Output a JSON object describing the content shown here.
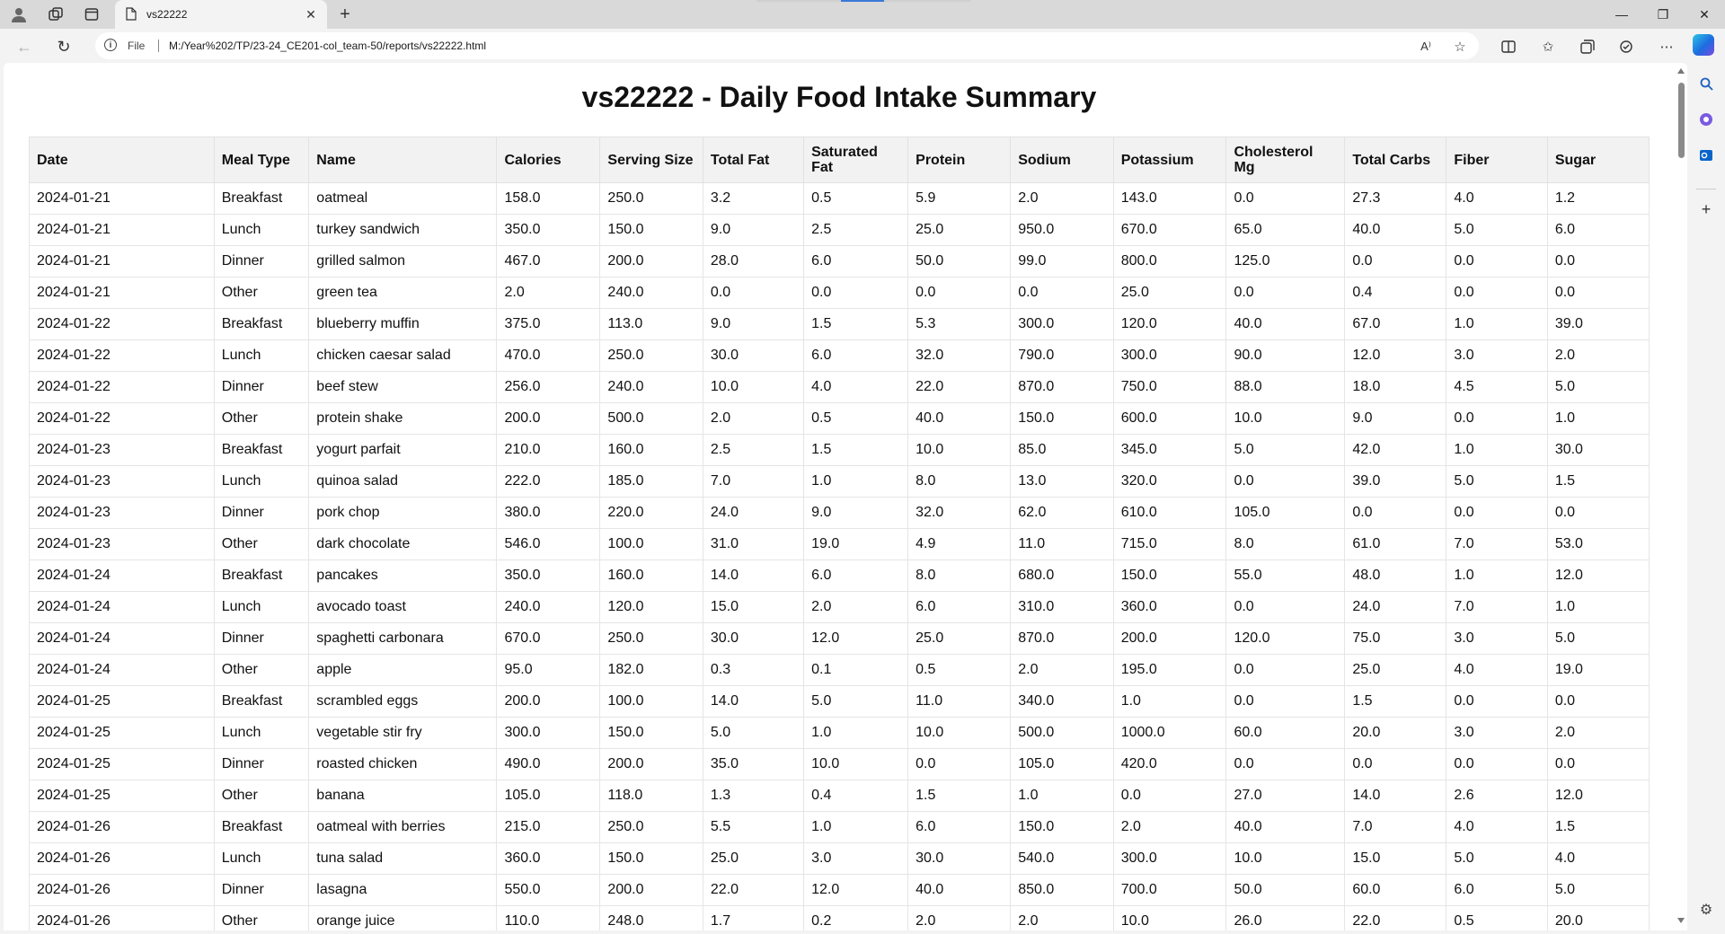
{
  "browser": {
    "tab_title": "vs22222",
    "address_prefix": "File",
    "url": "M:/Year%202/TP/23-24_CE201-col_team-50/reports/vs22222.html"
  },
  "page": {
    "title": "vs22222 - Daily Food Intake Summary"
  },
  "table": {
    "headers": [
      "Date",
      "Meal Type",
      "Name",
      "Calories",
      "Serving Size",
      "Total Fat",
      "Saturated Fat",
      "Protein",
      "Sodium",
      "Potassium",
      "Cholesterol Mg",
      "Total Carbs",
      "Fiber",
      "Sugar"
    ],
    "rows": [
      [
        "2024-01-21",
        "Breakfast",
        "oatmeal",
        "158.0",
        "250.0",
        "3.2",
        "0.5",
        "5.9",
        "2.0",
        "143.0",
        "0.0",
        "27.3",
        "4.0",
        "1.2"
      ],
      [
        "2024-01-21",
        "Lunch",
        "turkey sandwich",
        "350.0",
        "150.0",
        "9.0",
        "2.5",
        "25.0",
        "950.0",
        "670.0",
        "65.0",
        "40.0",
        "5.0",
        "6.0"
      ],
      [
        "2024-01-21",
        "Dinner",
        "grilled salmon",
        "467.0",
        "200.0",
        "28.0",
        "6.0",
        "50.0",
        "99.0",
        "800.0",
        "125.0",
        "0.0",
        "0.0",
        "0.0"
      ],
      [
        "2024-01-21",
        "Other",
        "green tea",
        "2.0",
        "240.0",
        "0.0",
        "0.0",
        "0.0",
        "0.0",
        "25.0",
        "0.0",
        "0.4",
        "0.0",
        "0.0"
      ],
      [
        "2024-01-22",
        "Breakfast",
        "blueberry muffin",
        "375.0",
        "113.0",
        "9.0",
        "1.5",
        "5.3",
        "300.0",
        "120.0",
        "40.0",
        "67.0",
        "1.0",
        "39.0"
      ],
      [
        "2024-01-22",
        "Lunch",
        "chicken caesar salad",
        "470.0",
        "250.0",
        "30.0",
        "6.0",
        "32.0",
        "790.0",
        "300.0",
        "90.0",
        "12.0",
        "3.0",
        "2.0"
      ],
      [
        "2024-01-22",
        "Dinner",
        "beef stew",
        "256.0",
        "240.0",
        "10.0",
        "4.0",
        "22.0",
        "870.0",
        "750.0",
        "88.0",
        "18.0",
        "4.5",
        "5.0"
      ],
      [
        "2024-01-22",
        "Other",
        "protein shake",
        "200.0",
        "500.0",
        "2.0",
        "0.5",
        "40.0",
        "150.0",
        "600.0",
        "10.0",
        "9.0",
        "0.0",
        "1.0"
      ],
      [
        "2024-01-23",
        "Breakfast",
        "yogurt parfait",
        "210.0",
        "160.0",
        "2.5",
        "1.5",
        "10.0",
        "85.0",
        "345.0",
        "5.0",
        "42.0",
        "1.0",
        "30.0"
      ],
      [
        "2024-01-23",
        "Lunch",
        "quinoa salad",
        "222.0",
        "185.0",
        "7.0",
        "1.0",
        "8.0",
        "13.0",
        "320.0",
        "0.0",
        "39.0",
        "5.0",
        "1.5"
      ],
      [
        "2024-01-23",
        "Dinner",
        "pork chop",
        "380.0",
        "220.0",
        "24.0",
        "9.0",
        "32.0",
        "62.0",
        "610.0",
        "105.0",
        "0.0",
        "0.0",
        "0.0"
      ],
      [
        "2024-01-23",
        "Other",
        "dark chocolate",
        "546.0",
        "100.0",
        "31.0",
        "19.0",
        "4.9",
        "11.0",
        "715.0",
        "8.0",
        "61.0",
        "7.0",
        "53.0"
      ],
      [
        "2024-01-24",
        "Breakfast",
        "pancakes",
        "350.0",
        "160.0",
        "14.0",
        "6.0",
        "8.0",
        "680.0",
        "150.0",
        "55.0",
        "48.0",
        "1.0",
        "12.0"
      ],
      [
        "2024-01-24",
        "Lunch",
        "avocado toast",
        "240.0",
        "120.0",
        "15.0",
        "2.0",
        "6.0",
        "310.0",
        "360.0",
        "0.0",
        "24.0",
        "7.0",
        "1.0"
      ],
      [
        "2024-01-24",
        "Dinner",
        "spaghetti carbonara",
        "670.0",
        "250.0",
        "30.0",
        "12.0",
        "25.0",
        "870.0",
        "200.0",
        "120.0",
        "75.0",
        "3.0",
        "5.0"
      ],
      [
        "2024-01-24",
        "Other",
        "apple",
        "95.0",
        "182.0",
        "0.3",
        "0.1",
        "0.5",
        "2.0",
        "195.0",
        "0.0",
        "25.0",
        "4.0",
        "19.0"
      ],
      [
        "2024-01-25",
        "Breakfast",
        "scrambled eggs",
        "200.0",
        "100.0",
        "14.0",
        "5.0",
        "11.0",
        "340.0",
        "1.0",
        "0.0",
        "1.5",
        "0.0",
        "0.0"
      ],
      [
        "2024-01-25",
        "Lunch",
        "vegetable stir fry",
        "300.0",
        "150.0",
        "5.0",
        "1.0",
        "10.0",
        "500.0",
        "1000.0",
        "60.0",
        "20.0",
        "3.0",
        "2.0"
      ],
      [
        "2024-01-25",
        "Dinner",
        "roasted chicken",
        "490.0",
        "200.0",
        "35.0",
        "10.0",
        "0.0",
        "105.0",
        "420.0",
        "0.0",
        "0.0",
        "0.0",
        "0.0"
      ],
      [
        "2024-01-25",
        "Other",
        "banana",
        "105.0",
        "118.0",
        "1.3",
        "0.4",
        "1.5",
        "1.0",
        "0.0",
        "27.0",
        "14.0",
        "2.6",
        "12.0"
      ],
      [
        "2024-01-26",
        "Breakfast",
        "oatmeal with berries",
        "215.0",
        "250.0",
        "5.5",
        "1.0",
        "6.0",
        "150.0",
        "2.0",
        "40.0",
        "7.0",
        "4.0",
        "1.5"
      ],
      [
        "2024-01-26",
        "Lunch",
        "tuna salad",
        "360.0",
        "150.0",
        "25.0",
        "3.0",
        "30.0",
        "540.0",
        "300.0",
        "10.0",
        "15.0",
        "5.0",
        "4.0"
      ],
      [
        "2024-01-26",
        "Dinner",
        "lasagna",
        "550.0",
        "200.0",
        "22.0",
        "12.0",
        "40.0",
        "850.0",
        "700.0",
        "50.0",
        "60.0",
        "6.0",
        "5.0"
      ],
      [
        "2024-01-26",
        "Other",
        "orange juice",
        "110.0",
        "248.0",
        "1.7",
        "0.2",
        "2.0",
        "2.0",
        "10.0",
        "26.0",
        "22.0",
        "0.5",
        "20.0"
      ]
    ]
  }
}
